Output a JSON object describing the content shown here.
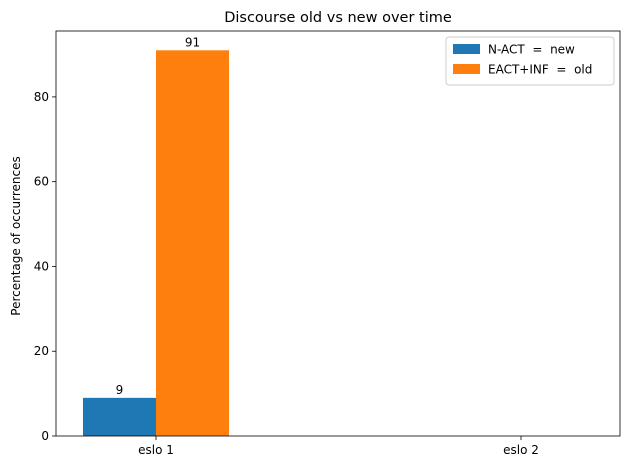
{
  "chart_data": {
    "type": "bar",
    "title": "Discourse old vs new over time",
    "xlabel": "",
    "ylabel": "Percentage of occurrences",
    "categories": [
      "eslo 1",
      "eslo 2"
    ],
    "series": [
      {
        "name": "N-ACT  =  new",
        "values": [
          9,
          0
        ],
        "color": "#1f77b4",
        "data_labels": [
          "9",
          ""
        ]
      },
      {
        "name": "EACT+INF  =  old",
        "values": [
          91,
          0
        ],
        "color": "#ff7f0e",
        "data_labels": [
          "91",
          ""
        ]
      }
    ],
    "ylim": [
      0,
      95.55
    ],
    "yticks": [
      0,
      20,
      40,
      60,
      80
    ],
    "grid": false,
    "legend_position": "top-right"
  }
}
